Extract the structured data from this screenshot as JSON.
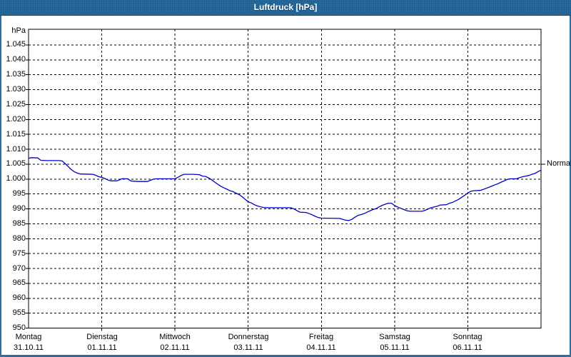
{
  "window": {
    "title": "Luftdruck [hPa]"
  },
  "colors": {
    "title_bar": "#276a9c",
    "title_text": "#ffffff",
    "frame": "#2b6ca3",
    "plot_background": "#ffffff",
    "grid": "#000000",
    "axis_text": "#000000",
    "line": "#0000c8"
  },
  "chart_data": {
    "type": "line",
    "title": "Luftdruck [hPa]",
    "y_unit_label": "hPa",
    "ylim": [
      950,
      1050
    ],
    "y_tick_step": 5,
    "y_tick_values": [
      1045,
      1040,
      1035,
      1030,
      1025,
      1020,
      1015,
      1010,
      1005,
      1000,
      995,
      990,
      985,
      980,
      975,
      970,
      965,
      960,
      955,
      950
    ],
    "y_tick_labels": [
      "1.045",
      "1.040",
      "1.035",
      "1.030",
      "1.025",
      "1.020",
      "1.015",
      "1.010",
      "1.005",
      "1.000",
      "995",
      "990",
      "985",
      "980",
      "975",
      "970",
      "965",
      "960",
      "955",
      "950"
    ],
    "x_hours_range": [
      0,
      168
    ],
    "x_days": [
      {
        "name": "Montag",
        "date": "31.10.11"
      },
      {
        "name": "Dienstag",
        "date": "01.11.11"
      },
      {
        "name": "Mittwoch",
        "date": "02.11.11"
      },
      {
        "name": "Donnerstag",
        "date": "03.11.11"
      },
      {
        "name": "Freitag",
        "date": "04.11.11"
      },
      {
        "name": "Samstag",
        "date": "05.11.11"
      },
      {
        "name": "Sonntag",
        "date": "06.11.11"
      }
    ],
    "grid": true,
    "legend": "none",
    "annotations": [
      {
        "label": "Normal",
        "value": 1005,
        "side": "right"
      }
    ],
    "series": [
      {
        "name": "Luftdruck",
        "color": "#0000c8",
        "points_hour_hpa": [
          [
            0,
            1007
          ],
          [
            1,
            1007.2
          ],
          [
            3,
            1007.1
          ],
          [
            4,
            1006.3
          ],
          [
            6,
            1006.2
          ],
          [
            10,
            1006.2
          ],
          [
            11,
            1006.1
          ],
          [
            12,
            1005.2
          ],
          [
            13,
            1004.2
          ],
          [
            14,
            1003.2
          ],
          [
            15,
            1002.5
          ],
          [
            16,
            1002
          ],
          [
            17,
            1001.7
          ],
          [
            21,
            1001.6
          ],
          [
            22,
            1001.3
          ],
          [
            23,
            1000.8
          ],
          [
            24,
            1000.6
          ],
          [
            25,
            1000.2
          ],
          [
            26,
            999.7
          ],
          [
            27,
            999.4
          ],
          [
            29,
            999.4
          ],
          [
            30,
            999.8
          ],
          [
            30.5,
            1000.1
          ],
          [
            32.5,
            1000.1
          ],
          [
            33.5,
            999.4
          ],
          [
            34,
            999.3
          ],
          [
            36,
            999.2
          ],
          [
            39,
            999.2
          ],
          [
            40,
            999.6
          ],
          [
            41,
            1000
          ],
          [
            42,
            1000.1
          ],
          [
            47,
            1000.1
          ],
          [
            48,
            1000.1
          ],
          [
            49,
            1000.6
          ],
          [
            50,
            1001.2
          ],
          [
            51,
            1001.6
          ],
          [
            54,
            1001.6
          ],
          [
            56,
            1001.5
          ],
          [
            57,
            1001
          ],
          [
            58,
            1000.9
          ],
          [
            59,
            1000.4
          ],
          [
            60,
            999.8
          ],
          [
            61,
            999
          ],
          [
            62,
            998.3
          ],
          [
            63,
            997.6
          ],
          [
            64,
            997.1
          ],
          [
            65,
            996.6
          ],
          [
            66,
            996.1
          ],
          [
            67,
            995.8
          ],
          [
            68,
            995.3
          ],
          [
            69,
            994.8
          ],
          [
            70,
            994.1
          ],
          [
            71,
            993.2
          ],
          [
            72,
            992.4
          ],
          [
            73,
            992
          ],
          [
            74,
            991.4
          ],
          [
            75,
            991
          ],
          [
            76,
            990.7
          ],
          [
            77,
            990.5
          ],
          [
            78,
            990.4
          ],
          [
            86,
            990.4
          ],
          [
            87,
            990
          ],
          [
            88,
            989.4
          ],
          [
            89,
            988.9
          ],
          [
            91,
            988.8
          ],
          [
            92,
            988.4
          ],
          [
            93,
            988
          ],
          [
            94,
            987.5
          ],
          [
            95,
            987.1
          ],
          [
            96,
            986.9
          ],
          [
            102,
            986.8
          ],
          [
            103,
            986.5
          ],
          [
            104,
            986.2
          ],
          [
            105,
            986.1
          ],
          [
            106,
            986.5
          ],
          [
            107,
            987.2
          ],
          [
            108,
            987.8
          ],
          [
            109,
            988.1
          ],
          [
            110,
            988.4
          ],
          [
            111,
            988.9
          ],
          [
            112,
            989.4
          ],
          [
            113,
            989.8
          ],
          [
            114,
            990.1
          ],
          [
            115,
            990.7
          ],
          [
            116,
            991.2
          ],
          [
            117,
            991.6
          ],
          [
            118,
            991.9
          ],
          [
            119,
            991.9
          ],
          [
            120,
            991.1
          ],
          [
            121,
            990.6
          ],
          [
            122,
            990.2
          ],
          [
            123,
            989.8
          ],
          [
            124,
            989.4
          ],
          [
            125,
            989.2
          ],
          [
            129,
            989.2
          ],
          [
            130,
            989.5
          ],
          [
            131,
            990
          ],
          [
            132,
            990.4
          ],
          [
            134,
            990.9
          ],
          [
            135,
            991.3
          ],
          [
            137,
            991.4
          ],
          [
            138,
            991.9
          ],
          [
            139,
            992.2
          ],
          [
            140,
            992.7
          ],
          [
            141,
            993.2
          ],
          [
            142,
            993.9
          ],
          [
            143,
            994.6
          ],
          [
            144,
            995.3
          ],
          [
            145,
            995.9
          ],
          [
            146,
            996.1
          ],
          [
            148,
            996.2
          ],
          [
            149,
            996.5
          ],
          [
            150,
            996.9
          ],
          [
            151,
            997.3
          ],
          [
            152,
            997.7
          ],
          [
            153,
            998.1
          ],
          [
            154,
            998.5
          ],
          [
            155,
            999
          ],
          [
            156,
            999.4
          ],
          [
            157,
            999.9
          ],
          [
            158,
            1000.1
          ],
          [
            160,
            1000.1
          ],
          [
            161,
            1000.5
          ],
          [
            162,
            1000.8
          ],
          [
            163,
            1001
          ],
          [
            164,
            1001.2
          ],
          [
            165,
            1001.6
          ],
          [
            166,
            1001.9
          ],
          [
            167,
            1002.5
          ],
          [
            168,
            1003
          ]
        ]
      }
    ]
  }
}
